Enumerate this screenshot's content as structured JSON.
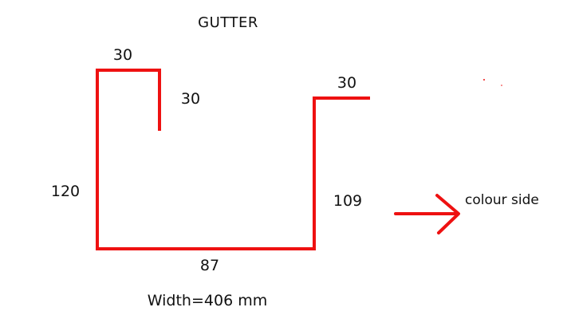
{
  "diagram": {
    "title": "GUTTER",
    "dimensions": {
      "top_lip": "30",
      "inner_return": "30",
      "back_height": "120",
      "base": "87",
      "front_height": "109",
      "front_flange": "30"
    },
    "width_note": "Width=406 mm",
    "colour_side_label": "colour side",
    "colors": {
      "profile": "#ee1111",
      "arrow": "#ee1111",
      "text": "#111111"
    }
  }
}
